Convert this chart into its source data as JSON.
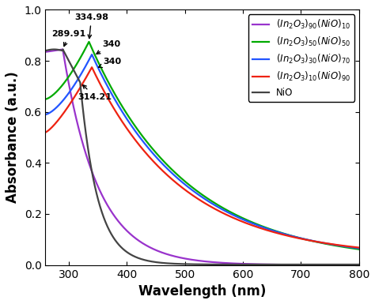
{
  "xlim": [
    260,
    800
  ],
  "ylim": [
    0.0,
    1.0
  ],
  "xlabel": "Wavelength (nm)",
  "ylabel": "Absorbance (a.u.)",
  "colors": {
    "purple": "#9933CC",
    "green": "#00AA00",
    "blue": "#2255FF",
    "red": "#EE2211",
    "black": "#444444"
  },
  "tick_fontsize": 10,
  "label_fontsize": 12,
  "legend_fontsize": 8.5,
  "linewidth": 1.6
}
